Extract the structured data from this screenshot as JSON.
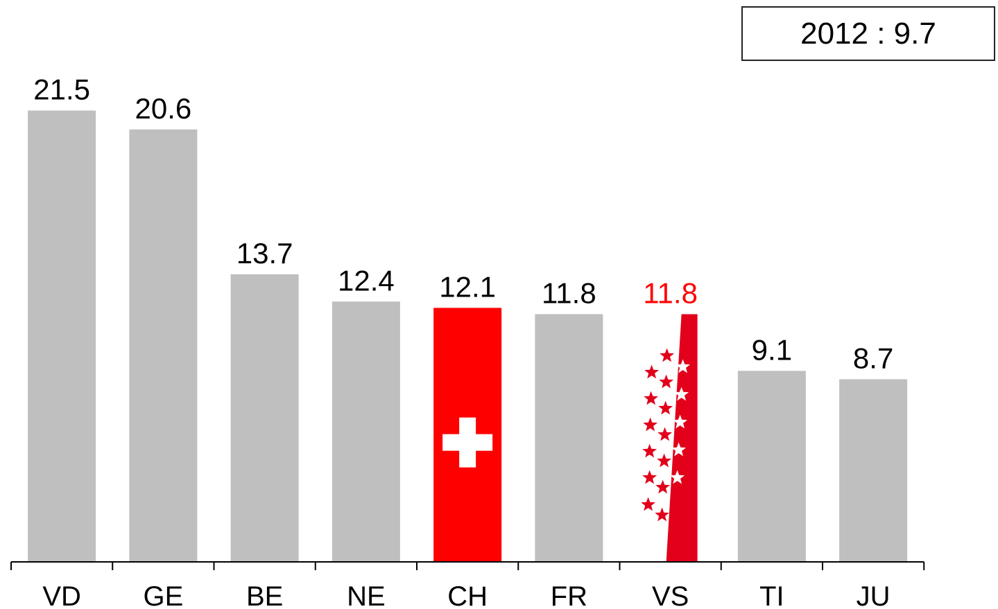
{
  "chart_data": {
    "type": "bar",
    "categories": [
      "VD",
      "GE",
      "BE",
      "NE",
      "CH",
      "FR",
      "VS",
      "TI",
      "JU"
    ],
    "values": [
      21.5,
      20.6,
      13.7,
      12.4,
      12.1,
      11.8,
      11.8,
      9.1,
      8.7
    ],
    "value_labels": [
      "21.5",
      "20.6",
      "13.7",
      "12.4",
      "12.1",
      "11.8",
      "11.8",
      "9.1",
      "8.7"
    ],
    "highlight": {
      "CH": {
        "style": "swiss-flag",
        "color": "#ff0000"
      },
      "VS": {
        "style": "valais-flag",
        "color": "#e2001a",
        "label_color": "#ff0000"
      }
    },
    "bar_color": "#bfbfbf",
    "ylim": [
      0,
      22
    ],
    "grid": false,
    "title": "",
    "xlabel": "",
    "ylabel": "",
    "annotation": "2012 : 9.7"
  }
}
